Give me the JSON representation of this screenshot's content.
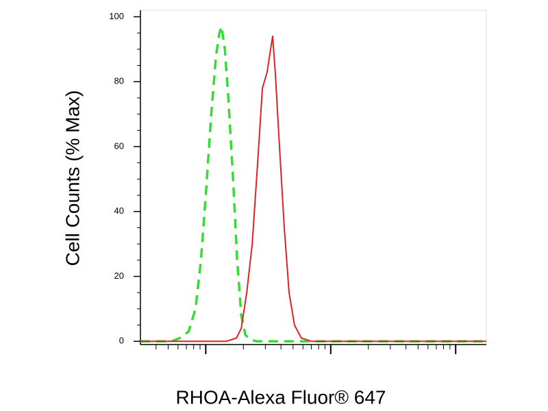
{
  "chart_data": {
    "type": "line",
    "x_label": "RHOA-Alexa Fluor® 647",
    "y_label": "Cell Counts (% Max)",
    "log_x": true,
    "xlim": [
      3.0,
      1760
    ],
    "xticks": [
      10,
      100,
      1000
    ],
    "ylim": [
      -1,
      102
    ],
    "yticks": [
      0,
      20,
      40,
      60,
      80,
      100
    ],
    "series": [
      {
        "color": "#33dd33",
        "dashed": true,
        "x": [
          3.0,
          5.33,
          6.2,
          7.3,
          8.28,
          9.16,
          10,
          11.06,
          12.08,
          12.86,
          13.36,
          14.22,
          15.15,
          16.55,
          17.83,
          19.23,
          20.74,
          22.65,
          25.7,
          1760
        ],
        "values": [
          0,
          0,
          1,
          3,
          10,
          25,
          45,
          70,
          88,
          95,
          97,
          90,
          75,
          50,
          25,
          8,
          2,
          0.5,
          0,
          0
        ]
      },
      {
        "color": "#dd2222",
        "dashed": false,
        "x": [
          3.0,
          14.6,
          17.6,
          19.23,
          21.28,
          23.54,
          26.0,
          28.4,
          31.0,
          33.0,
          34.3,
          36.1,
          38.9,
          42.5,
          46.4,
          51.3,
          58.2,
          70.3,
          1760
        ],
        "values": [
          0,
          0,
          1,
          4,
          15,
          30,
          55,
          78,
          83,
          90,
          94,
          82,
          60,
          35,
          15,
          5,
          1,
          0,
          0
        ]
      }
    ]
  }
}
